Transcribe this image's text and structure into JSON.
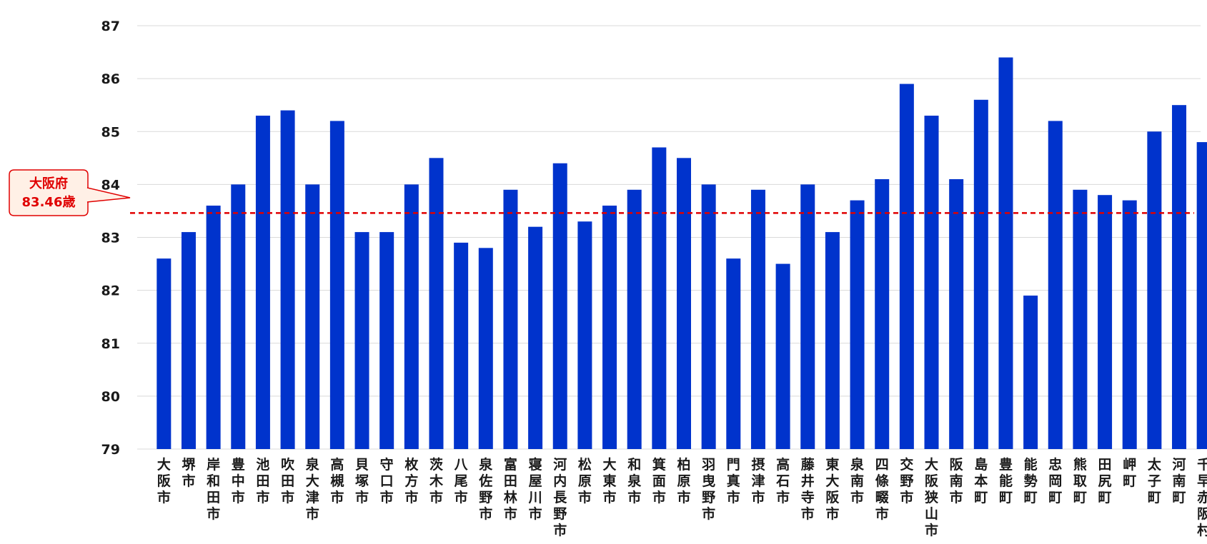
{
  "chart_data": {
    "type": "bar",
    "categories": [
      "大阪市",
      "堺市",
      "岸和田市",
      "豊中市",
      "池田市",
      "吹田市",
      "泉大津市",
      "高槻市",
      "貝塚市",
      "守口市",
      "枚方市",
      "茨木市",
      "八尾市",
      "泉佐野市",
      "富田林市",
      "寝屋川市",
      "河内長野市",
      "松原市",
      "大東市",
      "和泉市",
      "箕面市",
      "柏原市",
      "羽曳野市",
      "門真市",
      "摂津市",
      "高石市",
      "藤井寺市",
      "東大阪市",
      "泉南市",
      "四條畷市",
      "交野市",
      "大阪狭山市",
      "阪南市",
      "島本町",
      "豊能町",
      "能勢町",
      "忠岡町",
      "熊取町",
      "田尻町",
      "岬町",
      "太子町",
      "河南町",
      "千早赤阪村"
    ],
    "values": [
      82.6,
      83.1,
      83.6,
      84.0,
      85.3,
      85.4,
      84.0,
      85.2,
      83.1,
      83.1,
      84.0,
      84.5,
      82.9,
      82.8,
      83.9,
      83.2,
      84.4,
      83.3,
      83.6,
      83.9,
      84.7,
      84.5,
      84.0,
      82.6,
      83.9,
      82.5,
      84.0,
      83.1,
      83.7,
      84.1,
      85.9,
      85.3,
      84.1,
      85.6,
      86.4,
      81.9,
      85.2,
      83.9,
      83.8,
      83.7,
      85.0,
      85.5,
      84.8
    ],
    "ylim": [
      79,
      87
    ],
    "yticks": [
      79,
      80,
      81,
      82,
      83,
      84,
      85,
      86,
      87
    ],
    "grid": true,
    "reference": {
      "value": 83.46,
      "label_line1": "大阪府",
      "label_line2": "83.46歳"
    },
    "colors": {
      "bar": "#0033cc",
      "reference": "#e00000",
      "callout_fill": "#fff0e6"
    }
  }
}
